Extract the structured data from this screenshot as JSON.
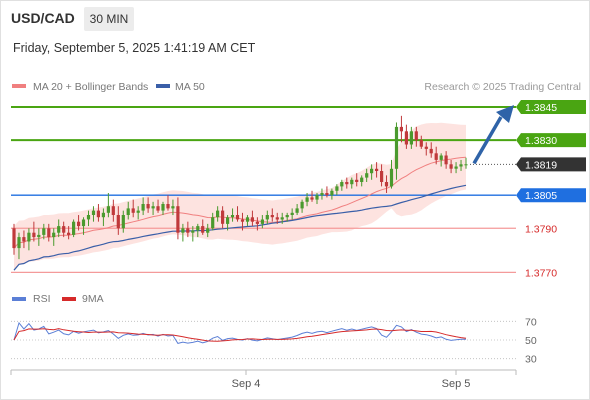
{
  "header": {
    "pair": "USD/CAD",
    "timeframe": "30 MIN",
    "datetime": "Friday, September 5, 2025 1:41:19 AM CET"
  },
  "legend": {
    "ma20_bb": "MA 20 + Bollinger Bands",
    "ma50": "MA 50",
    "credit": "Research © 2025 Trading Central"
  },
  "colors": {
    "up": "#4a9a2e",
    "down": "#c0393b",
    "ma20": "#f07f7f",
    "ma50": "#3a5fa8",
    "band_fill": "#fde0dd",
    "green_level": "#4aa512",
    "blue_level": "#1f6fe0",
    "red_level": "#f49a9a",
    "arrow": "#2f63a8",
    "rsi": "#5b7fd6",
    "rsi_ma": "#d62a2a"
  },
  "chart_data": [
    {
      "type": "candlestick",
      "ylim": [
        1.3762,
        1.385
      ],
      "levels": [
        {
          "value": 1.3845,
          "label": "1.3845",
          "style": "resistance"
        },
        {
          "value": 1.383,
          "label": "1.3830",
          "style": "resistance"
        },
        {
          "value": 1.3819,
          "label": "1.3819",
          "style": "current"
        },
        {
          "value": 1.3805,
          "label": "1.3805",
          "style": "pivot"
        },
        {
          "value": 1.379,
          "label": "1.3790",
          "style": "support"
        },
        {
          "value": 1.377,
          "label": "1.3770",
          "style": "support"
        }
      ],
      "x_ticks": [
        "Sep 4",
        "Sep 5"
      ],
      "candles": [
        [
          1.379,
          1.3792,
          1.3778,
          1.3781
        ],
        [
          1.3781,
          1.3788,
          1.3776,
          1.3786
        ],
        [
          1.3786,
          1.3789,
          1.3781,
          1.3784
        ],
        [
          1.3784,
          1.379,
          1.378,
          1.3788
        ],
        [
          1.3788,
          1.3793,
          1.3784,
          1.3786
        ],
        [
          1.3786,
          1.379,
          1.3782,
          1.3787
        ],
        [
          1.3787,
          1.3792,
          1.3785,
          1.379
        ],
        [
          1.379,
          1.3792,
          1.3784,
          1.3786
        ],
        [
          1.3786,
          1.379,
          1.3782,
          1.3788
        ],
        [
          1.3788,
          1.3794,
          1.3786,
          1.3791
        ],
        [
          1.3791,
          1.3793,
          1.3786,
          1.3788
        ],
        [
          1.3788,
          1.3791,
          1.3785,
          1.3787
        ],
        [
          1.3787,
          1.3794,
          1.3786,
          1.3793
        ],
        [
          1.3793,
          1.3796,
          1.3789,
          1.3791
        ],
        [
          1.3791,
          1.3795,
          1.3787,
          1.3794
        ],
        [
          1.3794,
          1.3798,
          1.3791,
          1.3796
        ],
        [
          1.3796,
          1.38,
          1.3793,
          1.3798
        ],
        [
          1.3798,
          1.3801,
          1.3793,
          1.3795
        ],
        [
          1.3795,
          1.3799,
          1.3791,
          1.3797
        ],
        [
          1.3797,
          1.3806,
          1.3795,
          1.38
        ],
        [
          1.38,
          1.3803,
          1.3793,
          1.3796
        ],
        [
          1.3796,
          1.38,
          1.3787,
          1.379
        ],
        [
          1.379,
          1.3798,
          1.3788,
          1.3796
        ],
        [
          1.3796,
          1.3802,
          1.3794,
          1.3799
        ],
        [
          1.3799,
          1.3803,
          1.3795,
          1.3797
        ],
        [
          1.3797,
          1.38,
          1.3794,
          1.3798
        ],
        [
          1.3798,
          1.3804,
          1.3796,
          1.3801
        ],
        [
          1.3801,
          1.3804,
          1.3797,
          1.3799
        ],
        [
          1.3799,
          1.3802,
          1.3796,
          1.38
        ],
        [
          1.38,
          1.3803,
          1.3797,
          1.3798
        ],
        [
          1.3798,
          1.3802,
          1.3796,
          1.3801
        ],
        [
          1.3801,
          1.3805,
          1.3798,
          1.3799
        ],
        [
          1.3799,
          1.3803,
          1.3796,
          1.38
        ],
        [
          1.38,
          1.3804,
          1.3785,
          1.3788
        ],
        [
          1.3788,
          1.3792,
          1.3784,
          1.379
        ],
        [
          1.379,
          1.3793,
          1.3786,
          1.3788
        ],
        [
          1.3788,
          1.3791,
          1.3784,
          1.3789
        ],
        [
          1.3789,
          1.3792,
          1.3786,
          1.3791
        ],
        [
          1.3791,
          1.3794,
          1.3787,
          1.3788
        ],
        [
          1.3788,
          1.3792,
          1.3786,
          1.379
        ],
        [
          1.379,
          1.3797,
          1.3789,
          1.3795
        ],
        [
          1.3795,
          1.38,
          1.3793,
          1.3798
        ],
        [
          1.3798,
          1.38,
          1.379,
          1.3792
        ],
        [
          1.3792,
          1.3796,
          1.3789,
          1.3795
        ],
        [
          1.3795,
          1.3799,
          1.3793,
          1.3796
        ],
        [
          1.3796,
          1.38,
          1.3793,
          1.3794
        ],
        [
          1.3794,
          1.3797,
          1.3789,
          1.3793
        ],
        [
          1.3793,
          1.3796,
          1.3791,
          1.3795
        ],
        [
          1.3795,
          1.3798,
          1.3791,
          1.3793
        ],
        [
          1.3793,
          1.3795,
          1.3789,
          1.3792
        ],
        [
          1.3792,
          1.3796,
          1.379,
          1.3794
        ],
        [
          1.3794,
          1.3798,
          1.3792,
          1.3796
        ],
        [
          1.3796,
          1.3799,
          1.3793,
          1.3795
        ],
        [
          1.3795,
          1.3797,
          1.3792,
          1.3794
        ],
        [
          1.3794,
          1.3797,
          1.3792,
          1.3795
        ],
        [
          1.3795,
          1.3797,
          1.3793,
          1.3796
        ],
        [
          1.3796,
          1.3799,
          1.3794,
          1.3797
        ],
        [
          1.3797,
          1.3801,
          1.3796,
          1.3799
        ],
        [
          1.3799,
          1.3803,
          1.3797,
          1.3802
        ],
        [
          1.3802,
          1.3806,
          1.38,
          1.3804
        ],
        [
          1.3804,
          1.3807,
          1.3802,
          1.3803
        ],
        [
          1.3803,
          1.3806,
          1.3801,
          1.3805
        ],
        [
          1.3805,
          1.3808,
          1.3803,
          1.3806
        ],
        [
          1.3806,
          1.3809,
          1.3804,
          1.3805
        ],
        [
          1.3805,
          1.3808,
          1.3803,
          1.3807
        ],
        [
          1.3807,
          1.381,
          1.3805,
          1.3809
        ],
        [
          1.3809,
          1.3812,
          1.3807,
          1.3811
        ],
        [
          1.3811,
          1.3813,
          1.3808,
          1.381
        ],
        [
          1.381,
          1.3813,
          1.3808,
          1.3812
        ],
        [
          1.3812,
          1.3815,
          1.3809,
          1.3811
        ],
        [
          1.3811,
          1.3814,
          1.3809,
          1.3813
        ],
        [
          1.3813,
          1.3817,
          1.3811,
          1.3815
        ],
        [
          1.3815,
          1.3819,
          1.3812,
          1.3817
        ],
        [
          1.3817,
          1.382,
          1.3813,
          1.3816
        ],
        [
          1.3816,
          1.3819,
          1.3809,
          1.3811
        ],
        [
          1.3811,
          1.3814,
          1.3806,
          1.3809
        ],
        [
          1.3809,
          1.3821,
          1.3808,
          1.3817
        ],
        [
          1.3817,
          1.3838,
          1.3812,
          1.3836
        ],
        [
          1.3836,
          1.3841,
          1.3829,
          1.3834
        ],
        [
          1.3834,
          1.3837,
          1.3826,
          1.3828
        ],
        [
          1.3828,
          1.3836,
          1.3826,
          1.3834
        ],
        [
          1.3834,
          1.3836,
          1.3827,
          1.383
        ],
        [
          1.383,
          1.3832,
          1.3826,
          1.3827
        ],
        [
          1.3827,
          1.3829,
          1.3823,
          1.3826
        ],
        [
          1.3826,
          1.3829,
          1.3822,
          1.3824
        ],
        [
          1.3824,
          1.3827,
          1.3819,
          1.3821
        ],
        [
          1.3821,
          1.3824,
          1.3818,
          1.3823
        ],
        [
          1.3823,
          1.3825,
          1.3817,
          1.3819
        ],
        [
          1.3819,
          1.3821,
          1.3815,
          1.3817
        ],
        [
          1.3817,
          1.382,
          1.3815,
          1.3818
        ],
        [
          1.3818,
          1.3821,
          1.3816,
          1.3819
        ],
        [
          1.3819,
          1.3822,
          1.3817,
          1.3819
        ]
      ]
    },
    {
      "type": "line",
      "title": "RSI",
      "series": [
        {
          "name": "RSI"
        },
        {
          "name": "9MA"
        }
      ],
      "ylim": [
        20,
        80
      ],
      "y_ticks": [
        70,
        50,
        30
      ]
    }
  ]
}
